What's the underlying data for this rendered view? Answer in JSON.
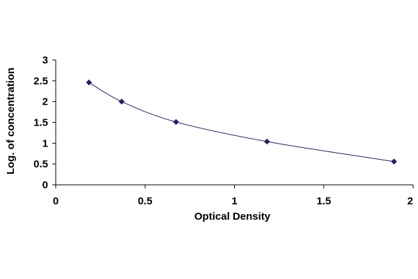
{
  "chart_data": {
    "type": "scatter",
    "title": "",
    "xlabel": "Optical Density",
    "ylabel": "Log. of concentration",
    "xlim": [
      0,
      2
    ],
    "ylim": [
      0,
      3
    ],
    "x_ticks": [
      "0",
      "0.5",
      "1",
      "1.5",
      "2"
    ],
    "y_ticks": [
      "0",
      "0.5",
      "1",
      "1.5",
      "2",
      "2.5",
      "3"
    ],
    "grid": false,
    "legend": "none",
    "marker": "diamond",
    "fit_line": "smooth curve through points",
    "colors": {
      "marker": "#1f1f6b",
      "line": "#1f1f6b",
      "axis": "#000000"
    },
    "series": [
      {
        "x": [
          0.186,
          0.369,
          0.673,
          1.182,
          1.893
        ],
        "y": [
          2.46,
          2.0,
          1.51,
          1.04,
          0.56
        ]
      }
    ]
  }
}
